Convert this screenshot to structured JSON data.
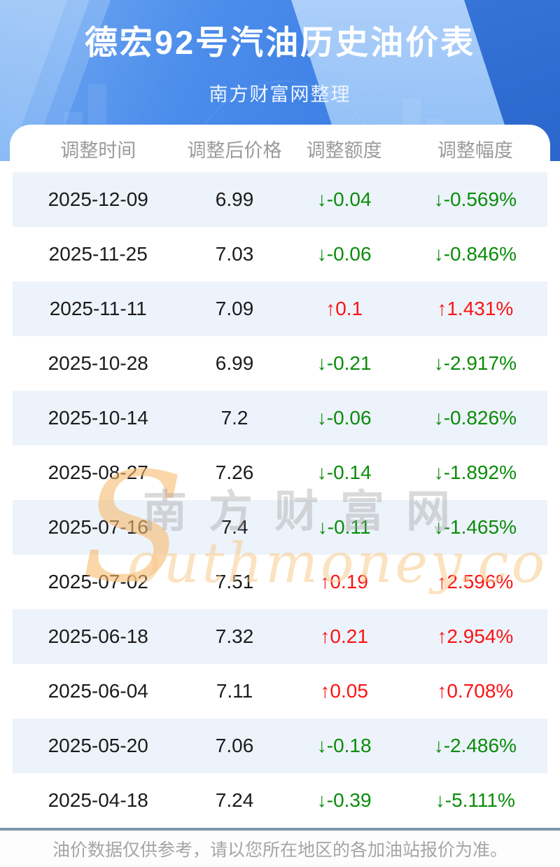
{
  "header": {
    "title": "德宏92号汽油历史油价表",
    "subtitle": "南方财富网整理"
  },
  "table": {
    "columns": [
      "调整时间",
      "调整后价格",
      "调整额度",
      "调整幅度"
    ],
    "rows": [
      {
        "date": "2025-12-09",
        "price": "6.99",
        "change_text": "↓-0.04",
        "pct_text": "↓-0.569%",
        "dir": "down"
      },
      {
        "date": "2025-11-25",
        "price": "7.03",
        "change_text": "↓-0.06",
        "pct_text": "↓-0.846%",
        "dir": "down"
      },
      {
        "date": "2025-11-11",
        "price": "7.09",
        "change_text": "↑0.1",
        "pct_text": "↑1.431%",
        "dir": "up"
      },
      {
        "date": "2025-10-28",
        "price": "6.99",
        "change_text": "↓-0.21",
        "pct_text": "↓-2.917%",
        "dir": "down"
      },
      {
        "date": "2025-10-14",
        "price": "7.2",
        "change_text": "↓-0.06",
        "pct_text": "↓-0.826%",
        "dir": "down"
      },
      {
        "date": "2025-08-27",
        "price": "7.26",
        "change_text": "↓-0.14",
        "pct_text": "↓-1.892%",
        "dir": "down"
      },
      {
        "date": "2025-07-16",
        "price": "7.4",
        "change_text": "↓-0.11",
        "pct_text": "↓-1.465%",
        "dir": "down"
      },
      {
        "date": "2025-07-02",
        "price": "7.51",
        "change_text": "↑0.19",
        "pct_text": "↑2.596%",
        "dir": "up"
      },
      {
        "date": "2025-06-18",
        "price": "7.32",
        "change_text": "↑0.21",
        "pct_text": "↑2.954%",
        "dir": "up"
      },
      {
        "date": "2025-06-04",
        "price": "7.11",
        "change_text": "↑0.05",
        "pct_text": "↑0.708%",
        "dir": "up"
      },
      {
        "date": "2025-05-20",
        "price": "7.06",
        "change_text": "↓-0.18",
        "pct_text": "↓-2.486%",
        "dir": "down"
      },
      {
        "date": "2025-04-18",
        "price": "7.24",
        "change_text": "↓-0.39",
        "pct_text": "↓-5.111%",
        "dir": "down"
      }
    ]
  },
  "watermark": {
    "initial": "S",
    "cn": "南方财富网",
    "latin": "outhmoney.com"
  },
  "footer": {
    "note": "油价数据仅供参考，请以您所在地区的各加油站报价为准。"
  },
  "colors": {
    "up": "#fa1414",
    "down": "#0a8c0a",
    "stripe": "#edf3fb",
    "divider": "#7e97ad",
    "banner_top": "#73abf3",
    "banner_bottom": "#3171da"
  }
}
